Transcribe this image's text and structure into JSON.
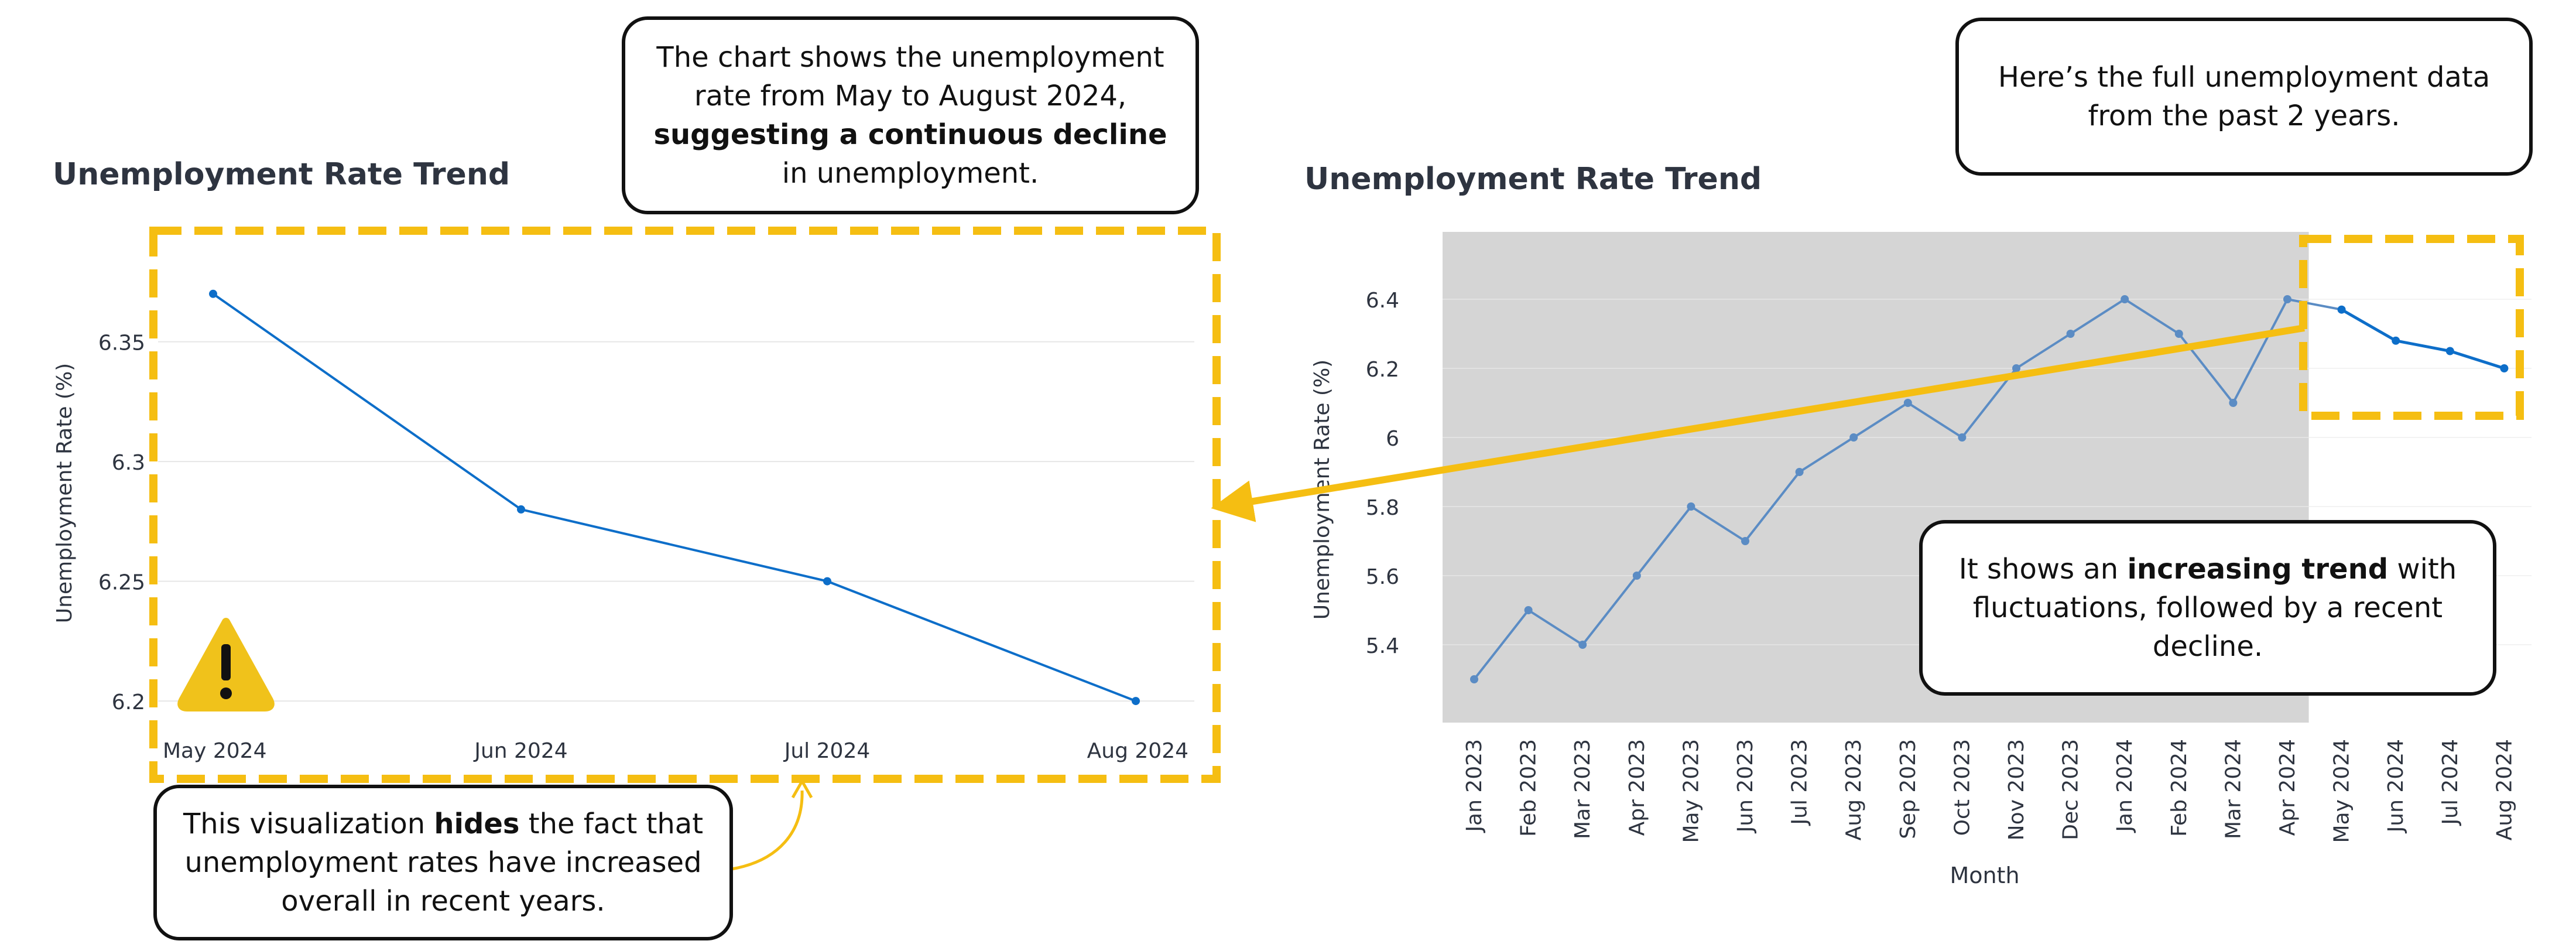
{
  "colors": {
    "line": "#0d6ec9",
    "line_context": "#5b8cc4",
    "highlight": "#f5be12",
    "warning": "#f0c21b",
    "context_background": "#d5d5d5",
    "text": "#2e3440",
    "grid": "#e6e6e6"
  },
  "left_chart": {
    "title": "Unemployment Rate Trend",
    "icon": "warning-icon"
  },
  "right_chart": {
    "title": "Unemployment Rate Trend"
  },
  "callouts": {
    "top_pre": "The chart shows the unemployment rate from May to August 2024,",
    "top_bold": "suggesting a continuous decline",
    "top_post": "in unemployment.",
    "bottom_pre": "This visualization",
    "bottom_bold": "hides",
    "bottom_post": "the fact that unemployment rates have increased overall in recent years.",
    "top_right": "Here’s the full unemployment data from the past 2 years.",
    "middle_right_pre": "It shows an",
    "middle_right_bold": "increasing trend",
    "middle_right_post": "with fluctuations, followed by a recent decline."
  },
  "chart_data": [
    {
      "type": "line",
      "title": "Unemployment Rate Trend",
      "xlabel": "",
      "ylabel": "Unemployment Rate (%)",
      "categories": [
        "May 2024",
        "Jun 2024",
        "Jul 2024",
        "Aug 2024"
      ],
      "values": [
        6.37,
        6.28,
        6.25,
        6.2
      ],
      "y_ticks": [
        "6.2",
        "6.25",
        "6.3",
        "6.35"
      ],
      "ylim": [
        6.19,
        6.39
      ],
      "grid": true
    },
    {
      "type": "line",
      "title": "Unemployment Rate Trend",
      "xlabel": "Month",
      "ylabel": "Unemployment Rate (%)",
      "categories": [
        "Jan 2023",
        "Feb 2023",
        "Mar 2023",
        "Apr 2023",
        "May 2023",
        "Jun 2023",
        "Jul 2023",
        "Aug 2023",
        "Sep 2023",
        "Oct 2023",
        "Nov 2023",
        "Dec 2023",
        "Jan 2024",
        "Feb 2024",
        "Mar 2024",
        "Apr 2024",
        "May 2024",
        "Jun 2024",
        "Jul 2024",
        "Aug 2024"
      ],
      "values": [
        5.3,
        5.5,
        5.4,
        5.6,
        5.8,
        5.7,
        5.9,
        6.0,
        6.1,
        6.0,
        6.2,
        6.3,
        6.4,
        6.3,
        6.1,
        6.4,
        6.37,
        6.28,
        6.25,
        6.2
      ],
      "y_ticks": [
        "5.4",
        "5.6",
        "5.8",
        "6",
        "6.2",
        "6.4"
      ],
      "ylim": [
        5.2,
        6.6
      ],
      "highlight_range": [
        "May 2024",
        "Aug 2024"
      ],
      "grid": true
    }
  ]
}
